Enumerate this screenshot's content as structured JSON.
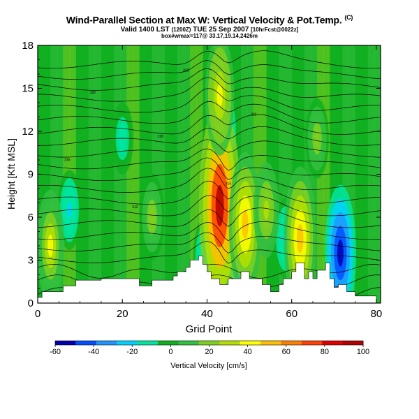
{
  "title": {
    "line1": "Wind-Parallel Section at Max W: Vertical Velocity & Pot.Temp.",
    "line1_mark": "(C)",
    "line2_main": "Valid 1400 LST",
    "line2_tz": "(1200Z)",
    "line2_date": "TUE 25 Sep 2007",
    "line2_run": "[10hrFcst@0022z]",
    "line3": "box#wmax=117@ 33.17,19.14,2426m"
  },
  "chart_data": {
    "type": "heatmap",
    "title": "Wind-Parallel Section at Max W: Vertical Velocity & Pot.Temp.",
    "xlabel": "Grid Point",
    "ylabel": "Height [Kft MSL]",
    "xlim": [
      0,
      81
    ],
    "ylim": [
      0,
      18
    ],
    "xticks": [
      0,
      20,
      40,
      60,
      80
    ],
    "yticks": [
      0,
      3,
      6,
      9,
      12,
      15,
      18
    ],
    "xtick_labels": [
      "0",
      "20",
      "40",
      "60",
      "80"
    ],
    "ytick_labels": [
      "0",
      "3",
      "6",
      "9",
      "12",
      "15",
      "18"
    ],
    "colorbar": {
      "label": "Vertical Velocity [cm/s]",
      "ticks": [
        -60,
        -40,
        -20,
        0,
        20,
        40,
        60,
        80,
        100
      ],
      "tick_labels": [
        "-60",
        "-40",
        "-20",
        "0",
        "20",
        "40",
        "60",
        "80",
        "100"
      ],
      "range": [
        -60,
        100
      ],
      "colors": [
        "#0000b0",
        "#0050ff",
        "#1e96ff",
        "#00d2ff",
        "#00e6a0",
        "#10b020",
        "#34c040",
        "#80d020",
        "#b4e000",
        "#ffff00",
        "#ffc000",
        "#ff8000",
        "#ff4000",
        "#e00000",
        "#b40000"
      ]
    },
    "terrain_kft": [
      [
        0,
        0.4
      ],
      [
        1,
        0.4
      ],
      [
        1,
        0.8
      ],
      [
        6,
        0.8
      ],
      [
        6,
        1.2
      ],
      [
        9,
        1.2
      ],
      [
        9,
        1.6
      ],
      [
        15,
        1.6
      ],
      [
        15,
        1.7
      ],
      [
        24,
        1.7
      ],
      [
        24,
        1.2
      ],
      [
        27,
        1.2
      ],
      [
        27,
        1.6
      ],
      [
        32,
        1.6
      ],
      [
        32,
        1.9
      ],
      [
        33,
        1.9
      ],
      [
        33,
        2.2
      ],
      [
        35,
        2.2
      ],
      [
        35,
        2.5
      ],
      [
        36,
        2.5
      ],
      [
        36,
        3.0
      ],
      [
        38,
        3.0
      ],
      [
        38,
        3.3
      ],
      [
        39,
        3.3
      ],
      [
        39,
        2.7
      ],
      [
        40,
        2.7
      ],
      [
        40,
        2.2
      ],
      [
        41,
        2.2
      ],
      [
        41,
        1.7
      ],
      [
        43,
        1.7
      ],
      [
        43,
        1.3
      ],
      [
        45,
        1.3
      ],
      [
        45,
        1.7
      ],
      [
        48,
        1.7
      ],
      [
        48,
        2.2
      ],
      [
        50,
        2.2
      ],
      [
        50,
        1.7
      ],
      [
        53,
        1.7
      ],
      [
        53,
        1.3
      ],
      [
        55,
        1.3
      ],
      [
        55,
        0.8
      ],
      [
        57,
        0.8
      ],
      [
        57,
        1.3
      ],
      [
        58,
        1.3
      ],
      [
        58,
        1.7
      ],
      [
        60,
        1.7
      ],
      [
        60,
        2.2
      ],
      [
        61,
        2.2
      ],
      [
        61,
        2.8
      ],
      [
        63,
        2.8
      ],
      [
        63,
        1.7
      ],
      [
        64,
        1.7
      ],
      [
        64,
        2.2
      ],
      [
        65,
        2.2
      ],
      [
        65,
        1.7
      ],
      [
        66,
        1.7
      ],
      [
        66,
        2.3
      ],
      [
        68,
        2.3
      ],
      [
        68,
        2.8
      ],
      [
        69,
        2.8
      ],
      [
        69,
        1.7
      ],
      [
        70,
        1.7
      ],
      [
        70,
        1.1
      ],
      [
        71,
        1.1
      ],
      [
        71,
        1.3
      ],
      [
        73,
        1.3
      ],
      [
        73,
        0.8
      ],
      [
        75,
        0.8
      ],
      [
        75,
        0.5
      ],
      [
        80,
        0.5
      ],
      [
        80,
        0
      ],
      [
        0,
        0
      ]
    ],
    "updraft_cores": [
      {
        "x": 43,
        "z_kft": 6.8,
        "w": 100
      },
      {
        "x": 43,
        "z_kft": 14.5,
        "w": 45
      },
      {
        "x": 49,
        "z_kft": 5.5,
        "w": 60
      },
      {
        "x": 62,
        "z_kft": 4.5,
        "w": 60
      },
      {
        "x": 3,
        "z_kft": 4.0,
        "w": 40
      },
      {
        "x": 27,
        "z_kft": 6.0,
        "w": 25
      },
      {
        "x": 54,
        "z_kft": 6.5,
        "w": 30
      },
      {
        "x": 66,
        "z_kft": 11.5,
        "w": 20
      }
    ],
    "downdraft_cores": [
      {
        "x": 44.5,
        "z_kft": 12.0,
        "w": -25
      },
      {
        "x": 71.5,
        "z_kft": 3.5,
        "w": -55
      },
      {
        "x": 7.5,
        "z_kft": 6.5,
        "w": -20
      },
      {
        "x": 39.5,
        "z_kft": 3.2,
        "w": -20
      },
      {
        "x": 47,
        "z_kft": 2.5,
        "w": -30
      },
      {
        "x": 58.5,
        "z_kft": 4.5,
        "w": -20
      },
      {
        "x": 20,
        "z_kft": 11.5,
        "w": -15
      }
    ],
    "theta_isentropes_K": [
      305,
      306,
      307,
      308,
      309,
      310,
      311,
      312,
      313,
      314,
      315,
      316,
      317,
      318,
      320,
      322,
      324,
      326,
      328,
      330,
      332
    ]
  }
}
